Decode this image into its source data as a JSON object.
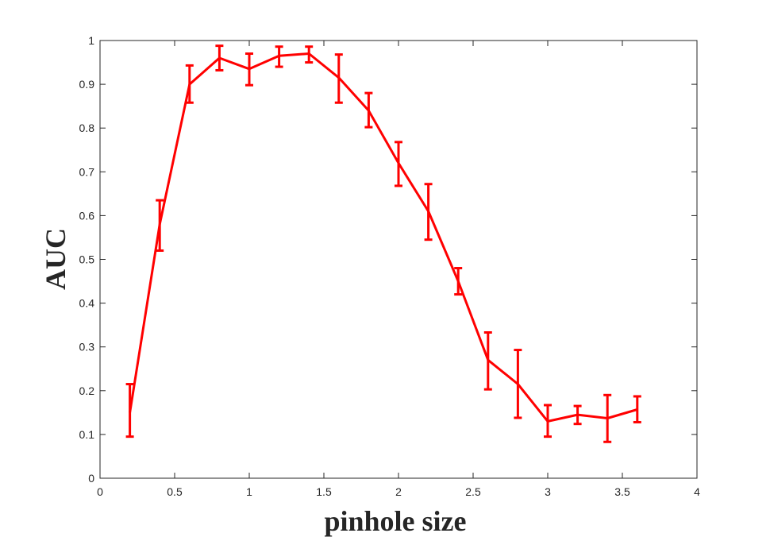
{
  "chart_data": {
    "type": "line",
    "xlabel": "pinhole size",
    "ylabel": "AUC",
    "xlim": [
      0,
      4
    ],
    "ylim": [
      0,
      1
    ],
    "xticks": [
      "0",
      "0.5",
      "1",
      "1.5",
      "2",
      "2.5",
      "3",
      "3.5",
      "4"
    ],
    "yticks": [
      "0",
      "0.1",
      "0.2",
      "0.3",
      "0.4",
      "0.5",
      "0.6",
      "0.7",
      "0.8",
      "0.9",
      "1"
    ],
    "grid": false,
    "line_color": "#ff0000",
    "series": [
      {
        "x": [
          0.2,
          0.4,
          0.6,
          0.8,
          1.0,
          1.2,
          1.4,
          1.6,
          1.8,
          2.0,
          2.2,
          2.4,
          2.6,
          2.8,
          3.0,
          3.2,
          3.4,
          3.6
        ],
        "y": [
          0.15,
          0.58,
          0.9,
          0.96,
          0.935,
          0.965,
          0.97,
          0.915,
          0.84,
          0.72,
          0.61,
          0.45,
          0.27,
          0.215,
          0.13,
          0.145,
          0.137,
          0.157
        ],
        "err_low": [
          0.095,
          0.52,
          0.858,
          0.932,
          0.898,
          0.94,
          0.95,
          0.858,
          0.802,
          0.668,
          0.545,
          0.42,
          0.203,
          0.138,
          0.095,
          0.124,
          0.083,
          0.128
        ],
        "err_high": [
          0.215,
          0.635,
          0.943,
          0.988,
          0.97,
          0.986,
          0.986,
          0.968,
          0.88,
          0.768,
          0.672,
          0.48,
          0.333,
          0.293,
          0.167,
          0.165,
          0.19,
          0.187
        ]
      }
    ]
  }
}
